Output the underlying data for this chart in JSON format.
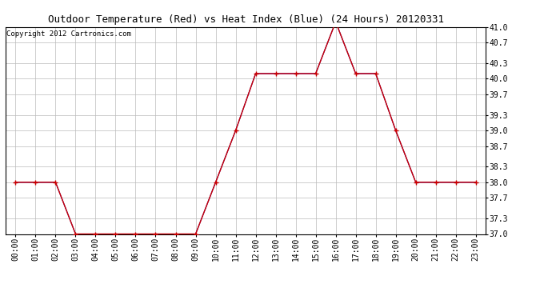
{
  "title": "Outdoor Temperature (Red) vs Heat Index (Blue) (24 Hours) 20120331",
  "copyright_text": "Copyright 2012 Cartronics.com",
  "x_labels": [
    "00:00",
    "01:00",
    "02:00",
    "03:00",
    "04:00",
    "05:00",
    "06:00",
    "07:00",
    "08:00",
    "09:00",
    "10:00",
    "11:00",
    "12:00",
    "13:00",
    "14:00",
    "15:00",
    "16:00",
    "17:00",
    "18:00",
    "19:00",
    "20:00",
    "21:00",
    "22:00",
    "23:00"
  ],
  "red_values": [
    38.0,
    38.0,
    38.0,
    37.0,
    37.0,
    37.0,
    37.0,
    37.0,
    37.0,
    37.0,
    38.0,
    39.0,
    40.1,
    40.1,
    40.1,
    40.1,
    41.1,
    40.1,
    40.1,
    39.0,
    38.0,
    38.0,
    38.0,
    38.0
  ],
  "blue_values": [
    38.0,
    38.0,
    38.0,
    37.0,
    37.0,
    37.0,
    37.0,
    37.0,
    37.0,
    37.0,
    38.0,
    39.0,
    40.1,
    40.1,
    40.1,
    40.1,
    41.1,
    40.1,
    40.1,
    39.0,
    38.0,
    38.0,
    38.0,
    38.0
  ],
  "ylim": [
    37.0,
    41.0
  ],
  "yticks": [
    37.0,
    37.3,
    37.7,
    38.0,
    38.3,
    38.7,
    39.0,
    39.3,
    39.7,
    40.0,
    40.3,
    40.7,
    41.0
  ],
  "red_color": "#cc0000",
  "blue_color": "#0000cc",
  "grid_color": "#bbbbbb",
  "bg_color": "#ffffff",
  "title_fontsize": 9,
  "copyright_fontsize": 6.5,
  "tick_fontsize": 7
}
